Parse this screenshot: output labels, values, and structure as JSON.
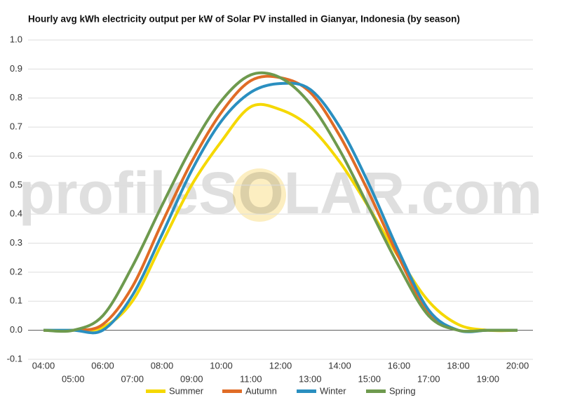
{
  "chart_data": {
    "type": "line",
    "title": "Hourly avg kWh electricity output per kW of Solar PV installed in Gianyar, Indonesia (by season)",
    "watermark": "profileSOLAR.com",
    "categories": [
      "04:00",
      "05:00",
      "06:00",
      "07:00",
      "08:00",
      "09:00",
      "10:00",
      "11:00",
      "12:00",
      "13:00",
      "14:00",
      "15:00",
      "16:00",
      "17:00",
      "18:00",
      "19:00",
      "20:00"
    ],
    "series": [
      {
        "name": "Summer",
        "color": "#f5d800",
        "values": [
          0,
          0,
          0.01,
          0.1,
          0.3,
          0.5,
          0.65,
          0.77,
          0.76,
          0.7,
          0.58,
          0.42,
          0.25,
          0.1,
          0.02,
          0,
          0
        ]
      },
      {
        "name": "Autumn",
        "color": "#e06c26",
        "values": [
          0,
          0,
          0.02,
          0.15,
          0.37,
          0.58,
          0.75,
          0.86,
          0.87,
          0.82,
          0.67,
          0.47,
          0.25,
          0.06,
          0,
          0,
          0
        ]
      },
      {
        "name": "Winter",
        "color": "#2a8fc0",
        "values": [
          0,
          0,
          0,
          0.12,
          0.33,
          0.55,
          0.72,
          0.82,
          0.85,
          0.83,
          0.7,
          0.5,
          0.27,
          0.07,
          0,
          0,
          0
        ]
      },
      {
        "name": "Spring",
        "color": "#6e9a4e",
        "values": [
          0,
          0,
          0.05,
          0.22,
          0.43,
          0.63,
          0.79,
          0.88,
          0.87,
          0.78,
          0.62,
          0.42,
          0.22,
          0.05,
          0,
          0,
          0
        ]
      }
    ],
    "ylim": [
      -0.1,
      1.0
    ],
    "yticks": [
      {
        "value": -0.1,
        "label": "-0.1"
      },
      {
        "value": 0,
        "label": "0.0"
      },
      {
        "value": 0.1,
        "label": "0.1"
      },
      {
        "value": 0.2,
        "label": "0.2"
      },
      {
        "value": 0.3,
        "label": "0.3"
      },
      {
        "value": 0.4,
        "label": "0.4"
      },
      {
        "value": 0.5,
        "label": "0.5"
      },
      {
        "value": 0.6,
        "label": "0.6"
      },
      {
        "value": 0.7,
        "label": "0.7"
      },
      {
        "value": 0.8,
        "label": "0.8"
      },
      {
        "value": 0.9,
        "label": "0.9"
      },
      {
        "value": 1.0,
        "label": "1.0"
      }
    ],
    "grid": true,
    "legend": "bottom"
  }
}
